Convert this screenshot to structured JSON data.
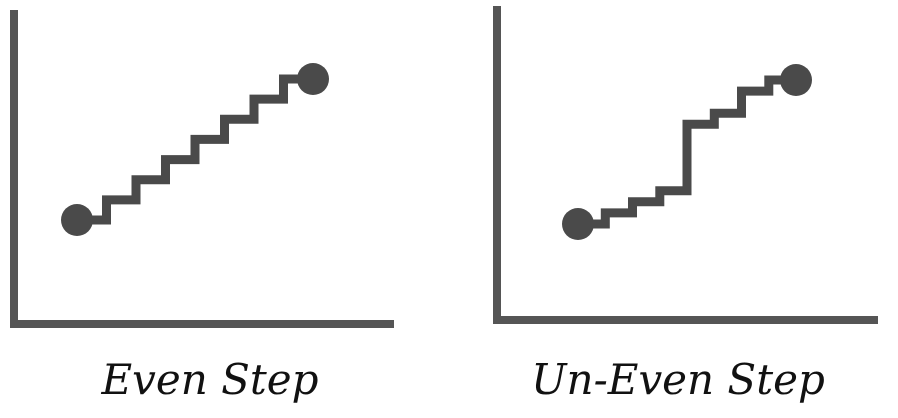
{
  "colors": {
    "ink": "#4a4a4a",
    "axis": "#555555",
    "text": "#111111",
    "background": "#ffffff"
  },
  "panels": [
    {
      "caption": "Even Step",
      "steps": [
        [
          0,
          0
        ],
        [
          1,
          0
        ],
        [
          1,
          1
        ],
        [
          2,
          1
        ],
        [
          2,
          2
        ],
        [
          3,
          2
        ],
        [
          3,
          3
        ],
        [
          4,
          3
        ],
        [
          4,
          4
        ],
        [
          5,
          4
        ],
        [
          5,
          5
        ],
        [
          6,
          5
        ],
        [
          6,
          6
        ],
        [
          7,
          6
        ],
        [
          7,
          7
        ],
        [
          8,
          7
        ]
      ]
    },
    {
      "caption": "Un-Even Step",
      "steps": [
        [
          0,
          0
        ],
        [
          1,
          0
        ],
        [
          1,
          0.5
        ],
        [
          2,
          0.5
        ],
        [
          2,
          1
        ],
        [
          3,
          1
        ],
        [
          3,
          1.5
        ],
        [
          4,
          1.5
        ],
        [
          4,
          4.5
        ],
        [
          5,
          4.5
        ],
        [
          5,
          5
        ],
        [
          6,
          5
        ],
        [
          6,
          6
        ],
        [
          7,
          6
        ],
        [
          7,
          6.5
        ],
        [
          8,
          6.5
        ]
      ]
    }
  ]
}
